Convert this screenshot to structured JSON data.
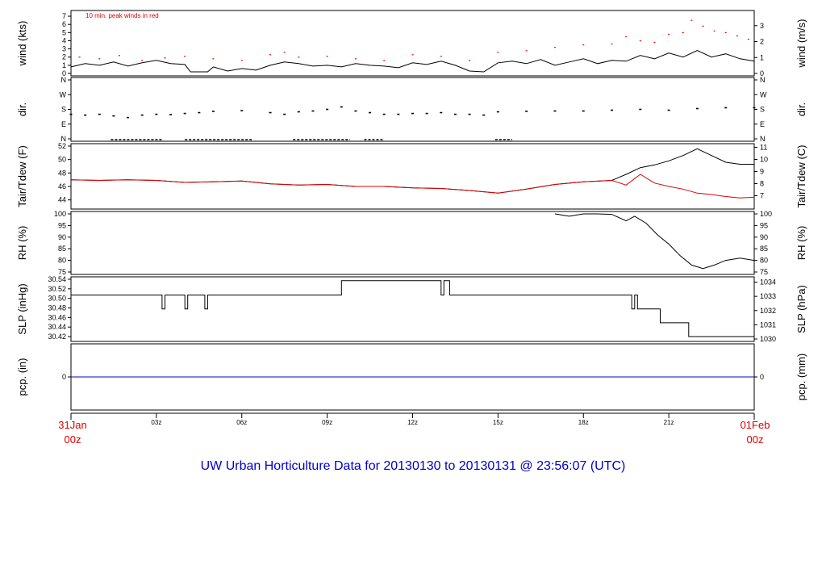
{
  "chart_data": {
    "type": "line",
    "title": "UW Urban Horticulture Data for 20130130  to  20130131 @ 23:56:07  (UTC)",
    "colors": {
      "title": "#0000cc",
      "edge": "#dd0000",
      "temp": "#000000",
      "dew": "#dd0000",
      "gust": "#dd0000",
      "pcp": "#0000cc",
      "line": "#000000"
    },
    "x_ticks": [
      "03z",
      "06z",
      "09z",
      "12z",
      "15z",
      "18z",
      "21z"
    ],
    "x_tick_hours": [
      3,
      6,
      9,
      12,
      15,
      18,
      21
    ],
    "x_range_hours": [
      0,
      24
    ],
    "x_start": {
      "date": "31Jan",
      "time": "00z"
    },
    "x_end": {
      "date": "01Feb",
      "time": "00z"
    },
    "panels": [
      {
        "id": "wind",
        "left_label": "wind (kts)",
        "right_label": "wind (m/s)",
        "left_ticks": [
          "0",
          "1",
          "2",
          "3",
          "4",
          "5",
          "6",
          "7"
        ],
        "left_range": [
          0,
          7.4
        ],
        "right_ticks": [
          "0",
          "1",
          "2",
          "3"
        ],
        "right_range": [
          0,
          3.8
        ],
        "annotation": "10 min. peak winds in red",
        "series": [
          {
            "kind": "line",
            "x": [
              0,
              0.5,
              1,
              1.5,
              2,
              2.5,
              3,
              3.5,
              4,
              4.2,
              4.8,
              5,
              5.5,
              6,
              6.5,
              7,
              7.5,
              8,
              8.5,
              9,
              9.5,
              10,
              10.5,
              11,
              11.5,
              12,
              12.5,
              13,
              13.5,
              14,
              14.5,
              15,
              15.5,
              16,
              16.5,
              17,
              17.5,
              18,
              18.5,
              19,
              19.5,
              20,
              20.5,
              21,
              21.5,
              22,
              22.5,
              23,
              23.5,
              24
            ],
            "y": [
              0.8,
              1.2,
              1.0,
              1.4,
              0.9,
              1.3,
              1.6,
              1.2,
              1.1,
              0.2,
              0.2,
              0.8,
              0.3,
              0.6,
              0.4,
              1.0,
              1.4,
              1.2,
              0.9,
              1.0,
              0.8,
              1.2,
              1.0,
              0.9,
              0.7,
              1.3,
              1.1,
              1.5,
              1.0,
              0.3,
              0.2,
              1.3,
              1.5,
              1.2,
              1.7,
              1.0,
              1.4,
              1.8,
              1.2,
              1.6,
              1.5,
              2.2,
              1.8,
              2.5,
              2.0,
              2.8,
              2.0,
              2.4,
              1.8,
              1.5
            ]
          },
          {
            "kind": "gust",
            "x": [
              0.3,
              1.0,
              1.7,
              2.5,
              3.3,
              4.0,
              5.0,
              6.0,
              7.0,
              7.5,
              8.0,
              9.0,
              10.0,
              11.0,
              12.0,
              13.0,
              14.0,
              15.0,
              16.0,
              17.0,
              18.0,
              19.0,
              19.5,
              20.0,
              20.5,
              21.0,
              21.5,
              21.8,
              22.2,
              22.6,
              23.0,
              23.4,
              23.8
            ],
            "y": [
              2.0,
              1.8,
              2.2,
              1.6,
              1.9,
              2.1,
              1.8,
              1.6,
              2.3,
              2.6,
              2.0,
              2.1,
              1.8,
              1.6,
              2.3,
              2.1,
              1.6,
              2.6,
              2.8,
              3.2,
              3.5,
              3.6,
              4.5,
              4.0,
              3.8,
              4.8,
              5.0,
              6.5,
              5.8,
              5.2,
              5.0,
              4.6,
              4.2
            ]
          }
        ]
      },
      {
        "id": "dir",
        "left_label": "dir.",
        "right_label": "dir.",
        "left_ticks": [
          "N",
          "E",
          "S",
          "W",
          "N"
        ],
        "left_range": [
          0,
          360
        ],
        "right_ticks": [
          "N",
          "E",
          "S",
          "W",
          "N"
        ],
        "right_range": [
          0,
          360
        ],
        "series": [
          {
            "kind": "scatter",
            "x": [
              0,
              0.5,
              1,
              1.5,
              2,
              2.5,
              3,
              3.5,
              4,
              4.5,
              5,
              6,
              7,
              7.5,
              8,
              8.5,
              9,
              9.5,
              10,
              10.5,
              11,
              11.5,
              12,
              12.5,
              13,
              13.5,
              14,
              14.5,
              15,
              16,
              17,
              18,
              19,
              20,
              21,
              22,
              23,
              24
            ],
            "y": [
              150,
              145,
              150,
              140,
              130,
              145,
              150,
              148,
              155,
              160,
              168,
              172,
              160,
              150,
              165,
              170,
              180,
              195,
              170,
              160,
              150,
              150,
              155,
              155,
              160,
              150,
              150,
              145,
              165,
              168,
              170,
              170,
              175,
              180,
              175,
              185,
              190,
              190
            ]
          },
          {
            "kind": "calm",
            "x_from": [
              1.4,
              4.0,
              7.8,
              10.3,
              14.9
            ],
            "x_to": [
              3.2,
              6.4,
              9.8,
              11.0,
              15.5
            ]
          }
        ]
      },
      {
        "id": "temp",
        "left_label": "Tair/Tdew (F)",
        "right_label": "Tair/Tdew (C)",
        "left_ticks": [
          "44",
          "46",
          "48",
          "50",
          "52"
        ],
        "left_range": [
          43,
          52
        ],
        "right_ticks": [
          "7",
          "8",
          "9",
          "10",
          "11"
        ],
        "right_range": [
          6.1,
          11.1
        ],
        "series": [
          {
            "kind": "temp",
            "x": [
              0,
              1,
              2,
              3,
              4,
              5,
              6,
              7,
              8,
              9,
              10,
              11,
              12,
              13,
              14,
              15,
              16,
              17,
              18,
              19,
              19.5,
              20,
              20.5,
              21,
              21.5,
              22,
              22.2,
              22.5,
              23,
              23.5,
              24
            ],
            "y": [
              47.0,
              46.9,
              47.0,
              46.9,
              46.6,
              46.7,
              46.8,
              46.4,
              46.2,
              46.3,
              46.0,
              46.0,
              45.8,
              45.7,
              45.4,
              45.0,
              45.6,
              46.3,
              46.7,
              46.9,
              47.8,
              48.8,
              49.2,
              49.8,
              50.6,
              51.6,
              51.2,
              50.6,
              49.6,
              49.3,
              49.3
            ]
          },
          {
            "kind": "dew",
            "x": [
              0,
              1,
              2,
              3,
              4,
              5,
              6,
              7,
              8,
              9,
              10,
              11,
              12,
              13,
              14,
              15,
              16,
              17,
              18,
              19,
              19.5,
              20,
              20.5,
              21,
              21.5,
              22,
              22.5,
              23,
              23.5,
              24
            ],
            "y": [
              47.0,
              46.9,
              47.0,
              46.9,
              46.6,
              46.7,
              46.8,
              46.4,
              46.2,
              46.3,
              46.0,
              46.0,
              45.8,
              45.7,
              45.4,
              45.0,
              45.6,
              46.3,
              46.7,
              46.9,
              46.2,
              47.8,
              46.5,
              46.0,
              45.6,
              45.0,
              44.8,
              44.5,
              44.3,
              44.4
            ]
          }
        ]
      },
      {
        "id": "rh",
        "left_label": "RH (%)",
        "right_label": "RH (%)",
        "left_ticks": [
          "75",
          "80",
          "85",
          "90",
          "95",
          "100"
        ],
        "left_range": [
          75,
          100
        ],
        "right_ticks": [
          "75",
          "80",
          "85",
          "90",
          "95",
          "100"
        ],
        "right_range": [
          75,
          100
        ],
        "series": [
          {
            "kind": "line",
            "x": [
              17,
              17.5,
              18,
              18.5,
              19,
              19.5,
              19.8,
              20.2,
              20.6,
              21,
              21.4,
              21.8,
              22.2,
              22.6,
              23,
              23.5,
              24
            ],
            "y": [
              100,
              99,
              100,
              100,
              99.8,
              97,
              99,
              96,
              91,
              87,
              82,
              78,
              76.5,
              78,
              80,
              81,
              80
            ]
          }
        ]
      },
      {
        "id": "slp",
        "left_label": "SLP (inHg)",
        "right_label": "SLP (hPa)",
        "left_ticks": [
          "30.42",
          "30.44",
          "30.46",
          "30.48",
          "30.50",
          "30.52",
          "30.54"
        ],
        "left_range": [
          30.415,
          30.54
        ],
        "right_ticks": [
          "1030",
          "1031",
          "1032",
          "1033",
          "1034"
        ],
        "right_range": [
          1030.0,
          1034.2
        ],
        "series": [
          {
            "kind": "step",
            "x": [
              0,
              3.2,
              3.3,
              4.0,
              4.1,
              4.7,
              4.8,
              9.5,
              13.0,
              13.1,
              13.3,
              13.4,
              19.7,
              19.8,
              19.9,
              20.0,
              20.7,
              21.7,
              24
            ],
            "y": [
              30.507,
              30.478,
              30.507,
              30.478,
              30.507,
              30.478,
              30.507,
              30.537,
              30.507,
              30.537,
              30.507,
              30.507,
              30.478,
              30.507,
              30.478,
              30.478,
              30.449,
              30.42,
              30.42
            ]
          }
        ]
      },
      {
        "id": "pcp",
        "left_label": "pcp. (in)",
        "right_label": "pcp. (mm)",
        "left_ticks": [
          "0"
        ],
        "left_range": [
          -1,
          1
        ],
        "right_ticks": [
          "0"
        ],
        "right_range": [
          -1,
          1
        ],
        "series": [
          {
            "kind": "pcp",
            "x": [
              0,
              24
            ],
            "y": [
              0,
              0
            ]
          }
        ]
      }
    ]
  }
}
